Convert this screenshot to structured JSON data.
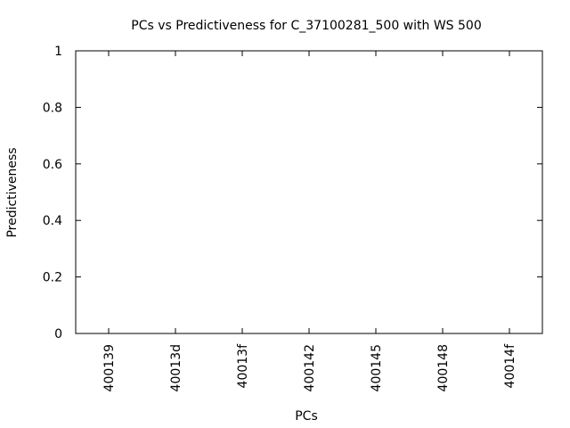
{
  "chart_data": {
    "type": "scatter",
    "title": "PCs vs Predictiveness for C_37100281_500 with WS 500",
    "xlabel": "PCs",
    "ylabel": "Predictiveness",
    "categories": [
      "400139",
      "40013d",
      "40013f",
      "400142",
      "400145",
      "400148",
      "40014f"
    ],
    "ylim": [
      0,
      1
    ],
    "yticks": [
      0,
      0.2,
      0.4,
      0.6,
      0.8,
      1
    ],
    "ytick_labels": [
      "0",
      "0.2",
      "0.4",
      "0.6",
      "0.8",
      "1"
    ],
    "series": [],
    "grid": false,
    "legend": "none"
  }
}
